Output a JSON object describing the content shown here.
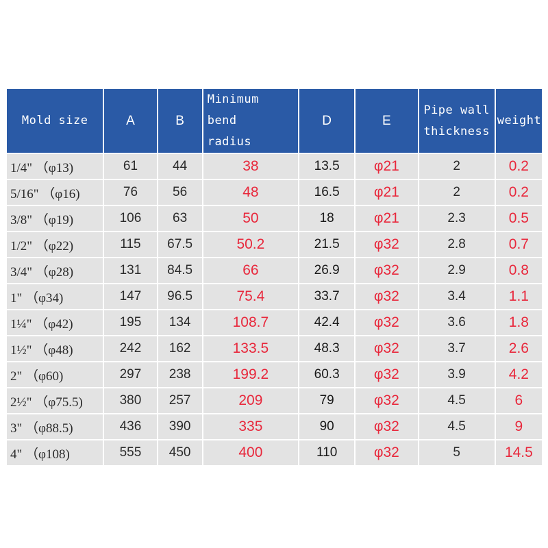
{
  "table": {
    "headers": {
      "mold_size": "Mold size",
      "a": "A",
      "b": "B",
      "min_bend_line1": "Minimum bend",
      "min_bend_line2": "radius",
      "d": "D",
      "e": "E",
      "pipe_wall_line1": "Pipe wall",
      "pipe_wall_line2": "thickness",
      "weight": "weight"
    },
    "rows": [
      {
        "size": "1/4\" （φ13)",
        "a": "61",
        "b": "44",
        "min_bend": "38",
        "d": "13.5",
        "e": "φ21",
        "wall": "2",
        "weight": "0.2"
      },
      {
        "size": "5/16\" （φ16)",
        "a": "76",
        "b": "56",
        "min_bend": "48",
        "d": "16.5",
        "e": "φ21",
        "wall": "2",
        "weight": "0.2"
      },
      {
        "size": "3/8\" （φ19)",
        "a": "106",
        "b": "63",
        "min_bend": "50",
        "d": "18",
        "e": "φ21",
        "wall": "2.3",
        "weight": "0.5"
      },
      {
        "size": "1/2\" （φ22)",
        "a": "115",
        "b": "67.5",
        "min_bend": "50.2",
        "d": "21.5",
        "e": "φ32",
        "wall": "2.8",
        "weight": "0.7"
      },
      {
        "size": "3/4\" （φ28)",
        "a": "131",
        "b": "84.5",
        "min_bend": "66",
        "d": "26.9",
        "e": "φ32",
        "wall": "2.9",
        "weight": "0.8"
      },
      {
        "size": "1\" （φ34)",
        "a": "147",
        "b": "96.5",
        "min_bend": "75.4",
        "d": "33.7",
        "e": "φ32",
        "wall": "3.4",
        "weight": "1.1"
      },
      {
        "size": "1¼\" （φ42)",
        "a": "195",
        "b": "134",
        "min_bend": "108.7",
        "d": "42.4",
        "e": "φ32",
        "wall": "3.6",
        "weight": "1.8"
      },
      {
        "size": "1½\" （φ48)",
        "a": "242",
        "b": "162",
        "min_bend": "133.5",
        "d": "48.3",
        "e": "φ32",
        "wall": "3.7",
        "weight": "2.6"
      },
      {
        "size": "2\" （φ60)",
        "a": "297",
        "b": "238",
        "min_bend": "199.2",
        "d": "60.3",
        "e": "φ32",
        "wall": "3.9",
        "weight": "4.2"
      },
      {
        "size": "2½\" （φ75.5)",
        "a": "380",
        "b": "257",
        "min_bend": "209",
        "d": "79",
        "e": "φ32",
        "wall": "4.5",
        "weight": "6"
      },
      {
        "size": "3\" （φ88.5)",
        "a": "436",
        "b": "390",
        "min_bend": "335",
        "d": "90",
        "e": "φ32",
        "wall": "4.5",
        "weight": "9"
      },
      {
        "size": "4\" （φ108)",
        "a": "555",
        "b": "450",
        "min_bend": "400",
        "d": "110",
        "e": "φ32",
        "wall": "5",
        "weight": "14.5"
      }
    ]
  },
  "colors": {
    "header_bg": "#2a5aa6",
    "header_text": "#ffffff",
    "cell_bg": "#e3e3e3",
    "highlight_text": "#e8283c"
  }
}
